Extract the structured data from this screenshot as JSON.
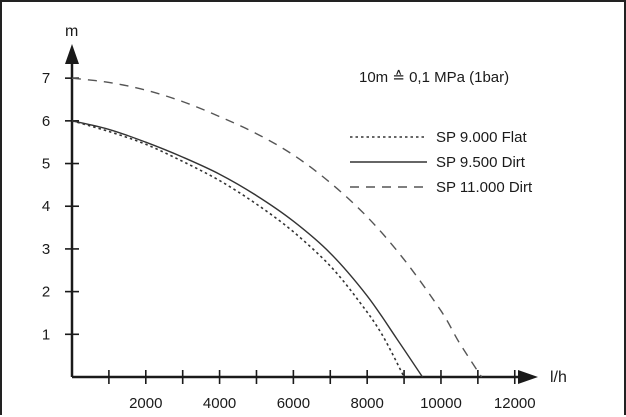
{
  "chart_data": {
    "type": "line",
    "title": "",
    "xlabel": "l/h",
    "ylabel": "m",
    "xlim": [
      0,
      14500
    ],
    "ylim": [
      0,
      7.8
    ],
    "x_ticks": [
      0,
      1000,
      2000,
      3000,
      4000,
      5000,
      6000,
      7000,
      8000,
      9000,
      10000,
      11000,
      12000
    ],
    "x_tick_labels": [
      {
        "value": 2000,
        "label": "2000"
      },
      {
        "value": 4000,
        "label": "4000"
      },
      {
        "value": 6000,
        "label": "6000"
      },
      {
        "value": 8000,
        "label": "8000"
      },
      {
        "value": 10000,
        "label": "10000"
      },
      {
        "value": 12000,
        "label": "12000"
      }
    ],
    "y_ticks": [
      {
        "value": 1,
        "label": "1"
      },
      {
        "value": 2,
        "label": "2"
      },
      {
        "value": 3,
        "label": "3"
      },
      {
        "value": 4,
        "label": "4"
      },
      {
        "value": 5,
        "label": "5"
      },
      {
        "value": 6,
        "label": "6"
      },
      {
        "value": 7,
        "label": "7"
      }
    ],
    "grid": false,
    "legend_position": "top-right",
    "annotation": "10m ≙ 0,1 MPa (1bar)",
    "series": [
      {
        "name": "SP 9.000 Flat",
        "style": "dotted",
        "color": "#333333",
        "points": [
          [
            0,
            6.0
          ],
          [
            1000,
            5.75
          ],
          [
            2000,
            5.45
          ],
          [
            3000,
            5.05
          ],
          [
            4000,
            4.6
          ],
          [
            5000,
            4.05
          ],
          [
            6000,
            3.4
          ],
          [
            7000,
            2.6
          ],
          [
            7800,
            1.75
          ],
          [
            8400,
            1.0
          ],
          [
            9000,
            0.0
          ]
        ]
      },
      {
        "name": "SP 9.500 Dirt",
        "style": "solid",
        "color": "#333333",
        "points": [
          [
            0,
            6.0
          ],
          [
            1000,
            5.8
          ],
          [
            2000,
            5.5
          ],
          [
            3000,
            5.15
          ],
          [
            4000,
            4.75
          ],
          [
            5000,
            4.25
          ],
          [
            6000,
            3.65
          ],
          [
            7000,
            2.9
          ],
          [
            8000,
            1.9
          ],
          [
            8800,
            0.9
          ],
          [
            9500,
            0.0
          ]
        ]
      },
      {
        "name": "SP 11.000 Dirt",
        "style": "dashed",
        "color": "#555555",
        "points": [
          [
            0,
            7.0
          ],
          [
            1000,
            6.9
          ],
          [
            2000,
            6.72
          ],
          [
            3000,
            6.45
          ],
          [
            4000,
            6.1
          ],
          [
            5000,
            5.7
          ],
          [
            6000,
            5.2
          ],
          [
            7000,
            4.55
          ],
          [
            8000,
            3.75
          ],
          [
            9000,
            2.75
          ],
          [
            10000,
            1.55
          ],
          [
            10500,
            0.8
          ],
          [
            11100,
            0.0
          ]
        ]
      }
    ]
  }
}
